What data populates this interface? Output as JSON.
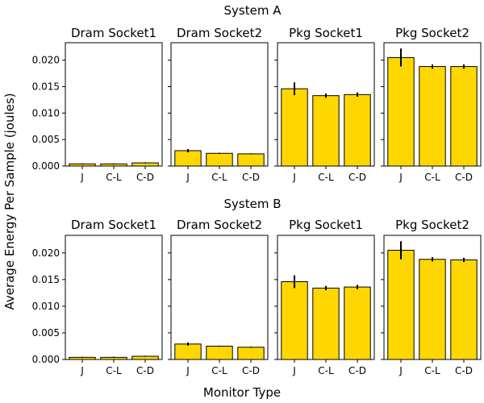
{
  "figure": {
    "ylabel": "Average Energy Per Sample (joules)",
    "xlabel": "Monitor Type"
  },
  "chart_data": [
    {
      "type": "bar",
      "title": "System A",
      "bar_color": "#ffd700",
      "edge_color": "#000000",
      "ylim": [
        0,
        0.0233
      ],
      "yticks": [
        "0.000",
        "0.005",
        "0.010",
        "0.015",
        "0.020"
      ],
      "panels": [
        {
          "title": "Dram Socket1",
          "categories": [
            "J",
            "C-L",
            "C-D"
          ],
          "values": [
            0.0004,
            0.0004,
            0.0006
          ],
          "errors": [
            0.0001,
            0.0001,
            0.0001
          ]
        },
        {
          "title": "Dram Socket2",
          "categories": [
            "J",
            "C-L",
            "C-D"
          ],
          "values": [
            0.0029,
            0.0024,
            0.0023
          ],
          "errors": [
            0.0003,
            0.0001,
            0.0001
          ]
        },
        {
          "title": "Pkg Socket1",
          "categories": [
            "J",
            "C-L",
            "C-D"
          ],
          "values": [
            0.0146,
            0.0133,
            0.0135
          ],
          "errors": [
            0.0012,
            0.0004,
            0.0004
          ]
        },
        {
          "title": "Pkg Socket2",
          "categories": [
            "J",
            "C-L",
            "C-D"
          ],
          "values": [
            0.0205,
            0.0188,
            0.0188
          ],
          "errors": [
            0.0017,
            0.0004,
            0.0004
          ]
        }
      ]
    },
    {
      "type": "bar",
      "title": "System B",
      "bar_color": "#ffd700",
      "edge_color": "#000000",
      "ylim": [
        0,
        0.0233
      ],
      "yticks": [
        "0.000",
        "0.005",
        "0.010",
        "0.015",
        "0.020"
      ],
      "panels": [
        {
          "title": "Dram Socket1",
          "categories": [
            "J",
            "C-L",
            "C-D"
          ],
          "values": [
            0.0004,
            0.0004,
            0.0006
          ],
          "errors": [
            0.0001,
            0.0001,
            0.0001
          ]
        },
        {
          "title": "Dram Socket2",
          "categories": [
            "J",
            "C-L",
            "C-D"
          ],
          "values": [
            0.0029,
            0.0025,
            0.0023
          ],
          "errors": [
            0.0003,
            0.0001,
            0.0001
          ]
        },
        {
          "title": "Pkg Socket1",
          "categories": [
            "J",
            "C-L",
            "C-D"
          ],
          "values": [
            0.0146,
            0.0134,
            0.0136
          ],
          "errors": [
            0.0012,
            0.0004,
            0.0004
          ]
        },
        {
          "title": "Pkg Socket2",
          "categories": [
            "J",
            "C-L",
            "C-D"
          ],
          "values": [
            0.0205,
            0.0188,
            0.0187
          ],
          "errors": [
            0.0017,
            0.0004,
            0.0004
          ]
        }
      ]
    }
  ]
}
